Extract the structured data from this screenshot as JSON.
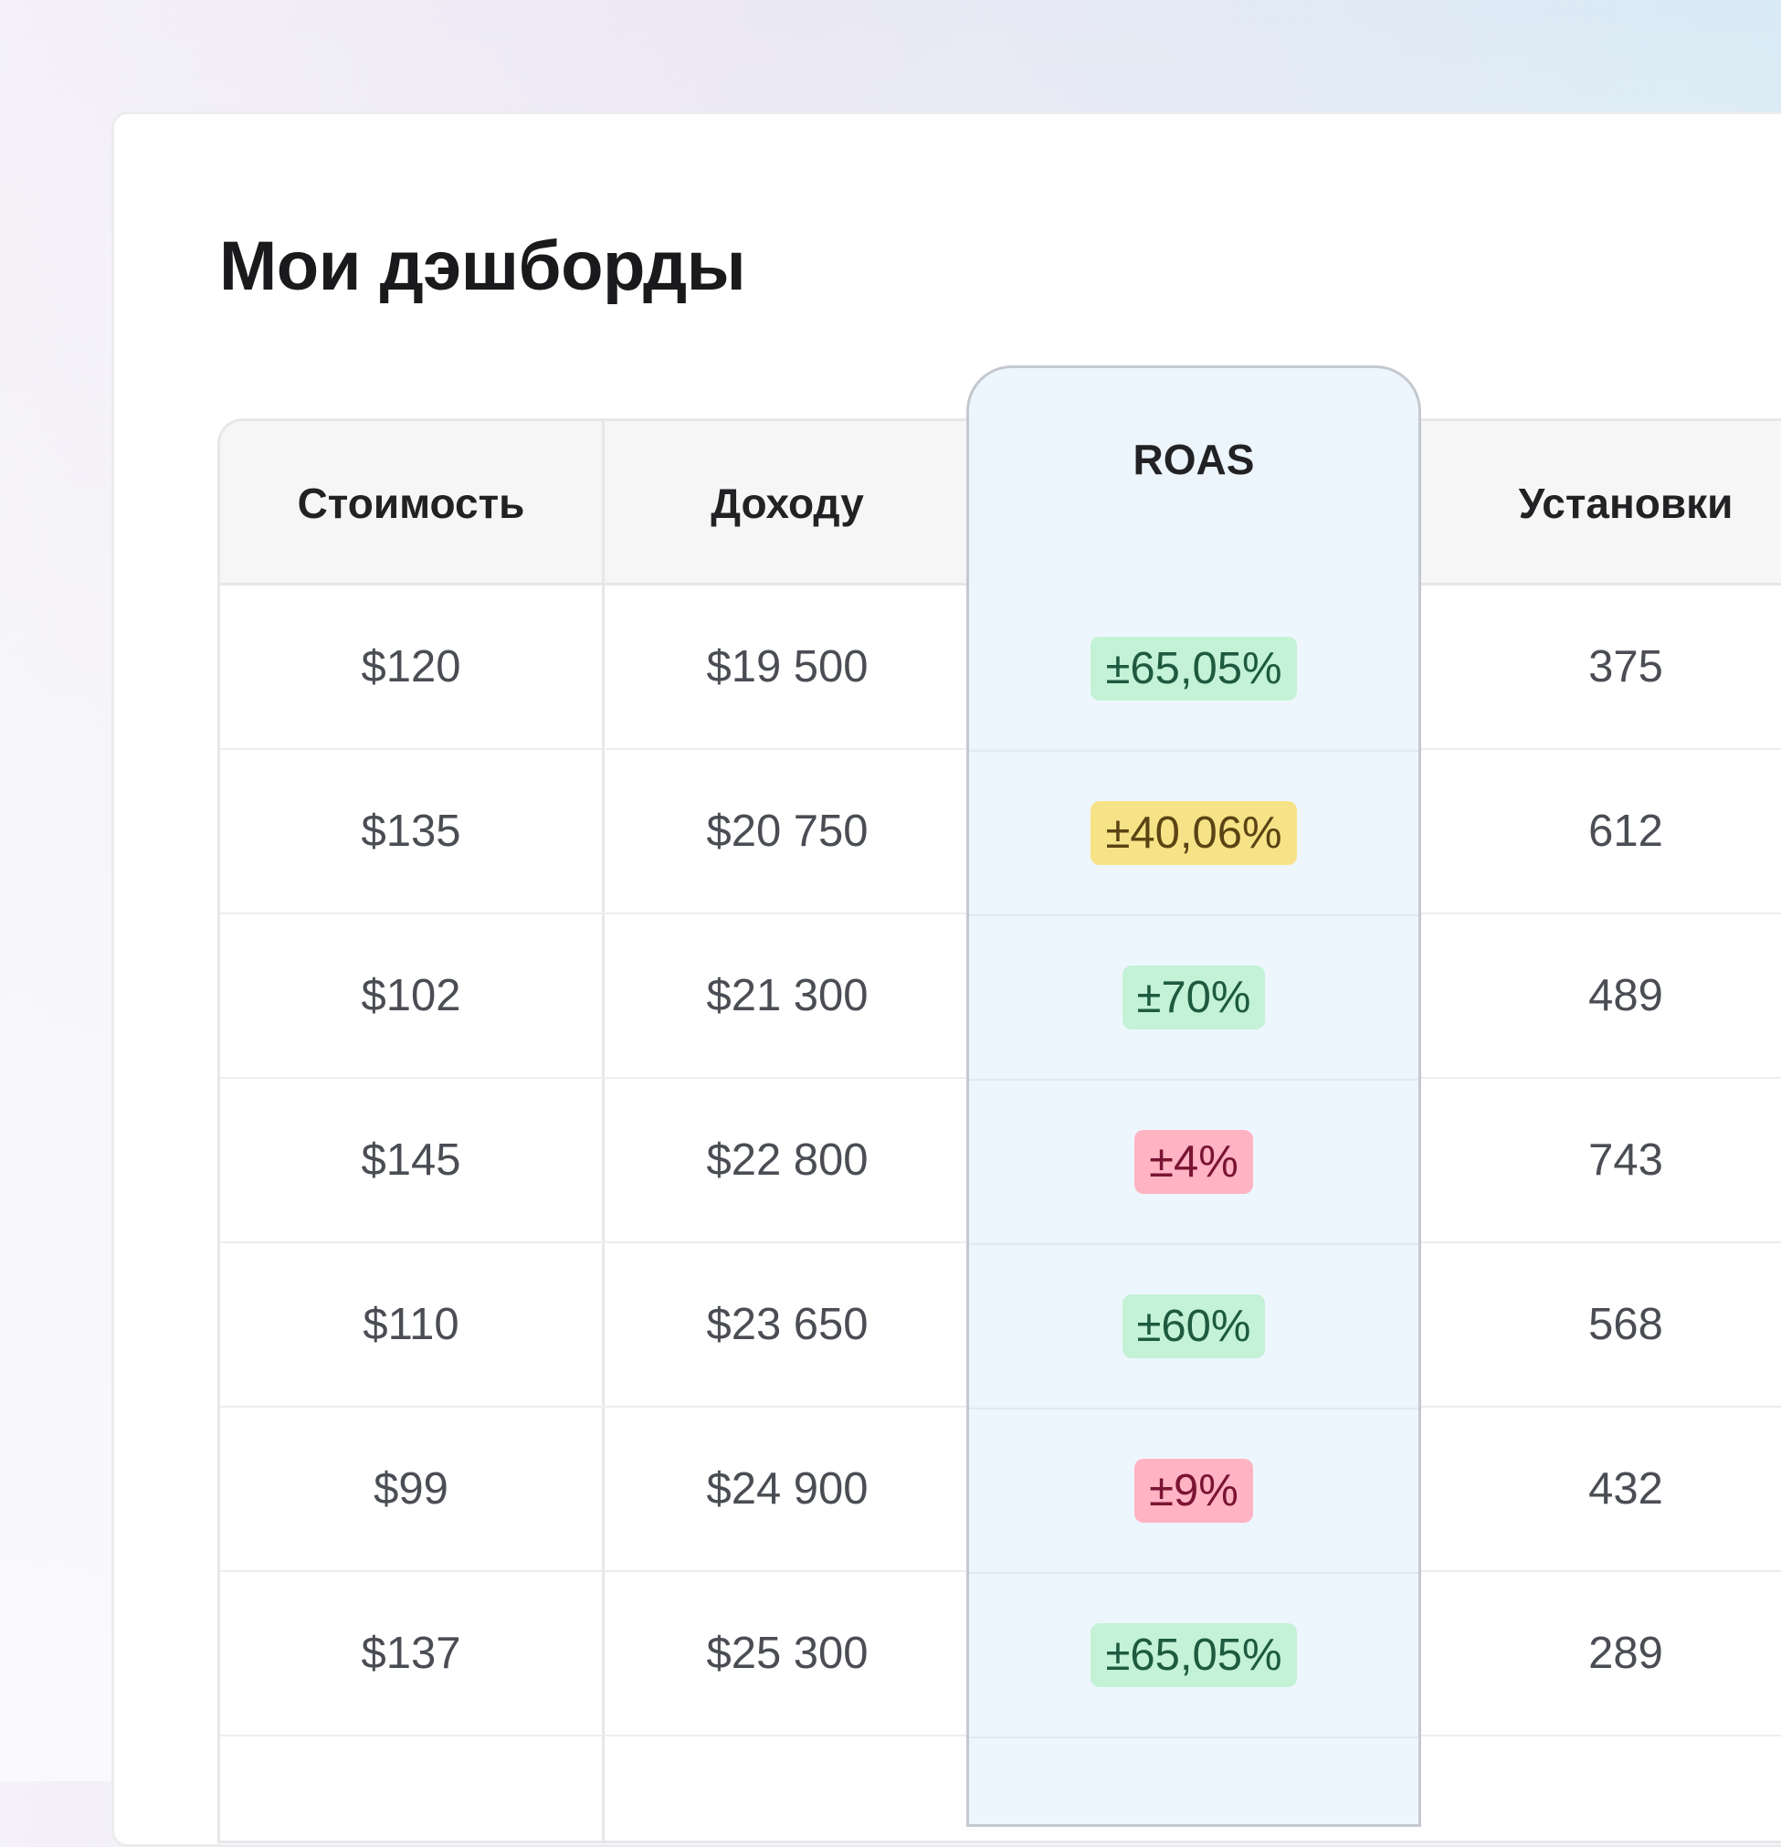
{
  "title": "Мои дэшборды",
  "columns": {
    "cost": "Стоимость",
    "revenue": "Доходу",
    "roas": "ROAS",
    "installs": "Установки"
  },
  "rows": [
    {
      "cost": "$120",
      "revenue": "$19 500",
      "roas": "±65,05%",
      "installs": "375"
    },
    {
      "cost": "$135",
      "revenue": "$20 750",
      "roas": "±40,06%",
      "installs": "612"
    },
    {
      "cost": "$102",
      "revenue": "$21 300",
      "roas": "±70%",
      "installs": "489"
    },
    {
      "cost": "$145",
      "revenue": "$22 800",
      "roas": "±4%",
      "installs": "743"
    },
    {
      "cost": "$110",
      "revenue": "$23 650",
      "roas": "±60%",
      "installs": "568"
    },
    {
      "cost": "$99",
      "revenue": "$24 900",
      "roas": "±9%",
      "installs": "432"
    },
    {
      "cost": "$137",
      "revenue": "$25 300",
      "roas": "±65,05%",
      "installs": "289"
    }
  ],
  "roas_status": [
    "positive",
    "neutral",
    "positive",
    "negative",
    "positive",
    "negative",
    "positive"
  ],
  "colors": {
    "positive_badge": "#c3f2d6",
    "neutral_badge": "#f7e387",
    "negative_badge": "#ffb3c3",
    "highlight_column": "#ecf5fd"
  }
}
